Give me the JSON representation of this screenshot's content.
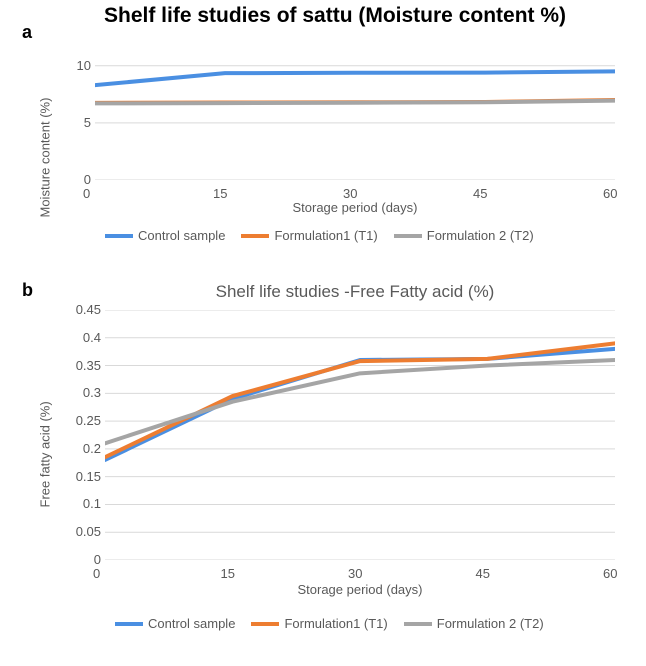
{
  "main_title": "Shelf life studies of sattu (Moisture content %)",
  "panel_a": {
    "label": "a",
    "type": "line",
    "title_fontsize": 21,
    "y_axis": {
      "label": "Moisture content (%)",
      "min": 0,
      "max": 10.5,
      "ticks": [
        0,
        5,
        10
      ],
      "label_fontsize": 13,
      "tick_fontsize": 13
    },
    "x_axis": {
      "label": "Storage period (days)",
      "min": 0,
      "max": 60,
      "ticks": [
        0,
        15,
        30,
        45,
        60
      ],
      "label_fontsize": 13,
      "tick_fontsize": 13
    },
    "grid_color": "#d9d9d9",
    "axis_color": "#d9d9d9",
    "background_color": "#ffffff",
    "line_width": 4,
    "series": [
      {
        "name": "Control sample",
        "color": "#4a8fe2",
        "x": [
          0,
          15,
          30,
          45,
          60
        ],
        "y": [
          8.3,
          9.35,
          9.38,
          9.4,
          9.5
        ]
      },
      {
        "name": "Formulation1 (T1)",
        "color": "#ed7d31",
        "x": [
          0,
          15,
          30,
          45,
          60
        ],
        "y": [
          6.75,
          6.78,
          6.8,
          6.83,
          7.0
        ]
      },
      {
        "name": "Formulation 2 (T2)",
        "color": "#a5a5a5",
        "x": [
          0,
          15,
          30,
          45,
          60
        ],
        "y": [
          6.7,
          6.73,
          6.76,
          6.8,
          6.95
        ]
      }
    ]
  },
  "panel_b": {
    "label": "b",
    "type": "line",
    "title": "Shelf life studies -Free Fatty acid (%)",
    "title_fontsize": 17,
    "y_axis": {
      "label": "Free fatty acid (%)",
      "min": 0,
      "max": 0.45,
      "ticks": [
        0,
        0.05,
        0.1,
        0.15,
        0.2,
        0.25,
        0.3,
        0.35,
        0.4,
        0.45
      ],
      "label_fontsize": 13,
      "tick_fontsize": 13
    },
    "x_axis": {
      "label": "Storage period (days)",
      "min": 0,
      "max": 60,
      "ticks": [
        0,
        15,
        30,
        45,
        60
      ],
      "label_fontsize": 13,
      "tick_fontsize": 13
    },
    "grid_color": "#d9d9d9",
    "axis_color": "#d9d9d9",
    "background_color": "#ffffff",
    "line_width": 4,
    "series": [
      {
        "name": "Control sample",
        "color": "#4a8fe2",
        "x": [
          0,
          15,
          30,
          45,
          60
        ],
        "y": [
          0.18,
          0.29,
          0.36,
          0.362,
          0.38
        ]
      },
      {
        "name": "Formulation1 (T1)",
        "color": "#ed7d31",
        "x": [
          0,
          15,
          30,
          45,
          60
        ],
        "y": [
          0.185,
          0.295,
          0.358,
          0.362,
          0.39
        ]
      },
      {
        "name": "Formulation 2 (T2)",
        "color": "#a5a5a5",
        "x": [
          0,
          15,
          30,
          45,
          60
        ],
        "y": [
          0.21,
          0.285,
          0.336,
          0.35,
          0.36
        ]
      }
    ]
  },
  "legend": {
    "items": [
      {
        "label": "Control sample",
        "color": "#4a8fe2"
      },
      {
        "label": "Formulation1 (T1)",
        "color": "#ed7d31"
      },
      {
        "label": "Formulation 2 (T2)",
        "color": "#a5a5a5"
      }
    ],
    "fontsize": 13
  }
}
